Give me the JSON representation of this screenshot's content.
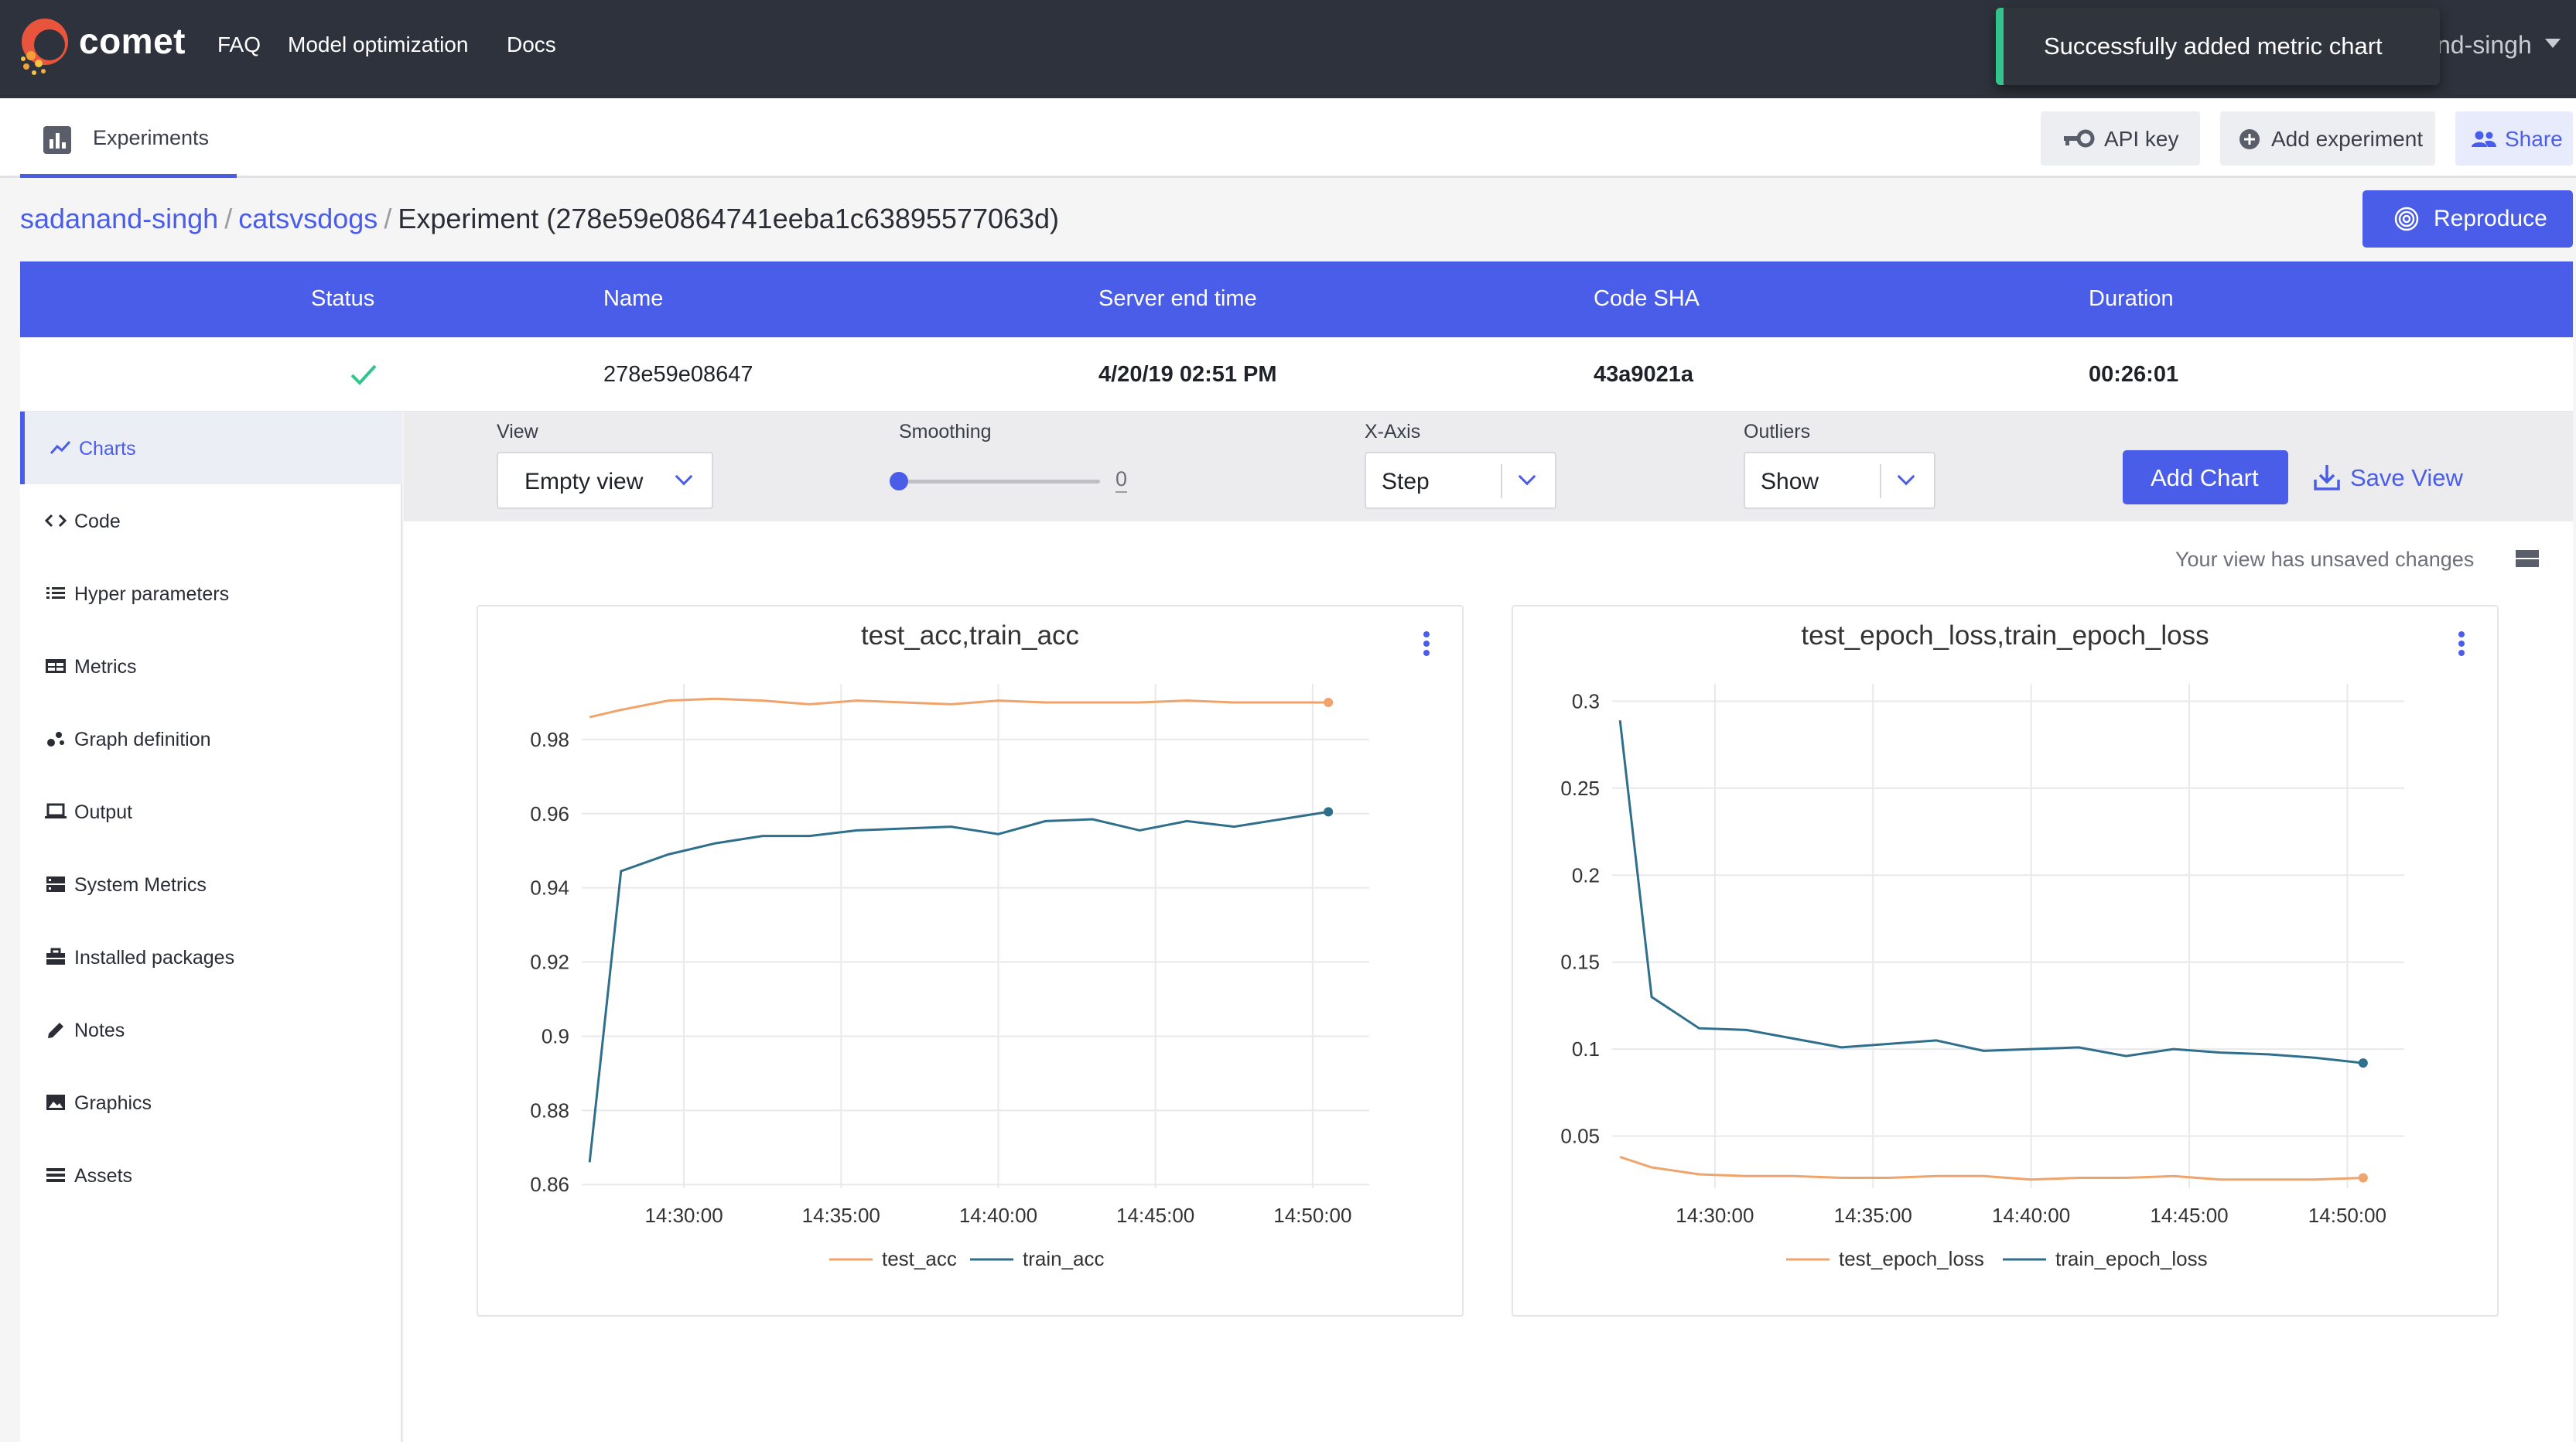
{
  "app": {
    "brand": "comet"
  },
  "topnav": [
    "FAQ",
    "Model optimization",
    "Docs"
  ],
  "user_truncated": "nd-singh",
  "toast": {
    "message": "Successfully added metric chart"
  },
  "subheader": {
    "tab_label": "Experiments",
    "api_key_label": "API key",
    "add_experiment_label": "Add experiment",
    "share_label": "Share"
  },
  "breadcrumb": {
    "workspace": "sadanand-singh",
    "project": "catsvsdogs",
    "separator": "/",
    "current": "Experiment (278e59e0864741eeba1c63895577063d)"
  },
  "reproduce_label": "Reproduce",
  "info_table": {
    "headers": [
      "Status",
      "Name",
      "Server end time",
      "Code SHA",
      "Duration"
    ],
    "row": {
      "status": "success",
      "name": "278e59e08647",
      "server_end_time": "4/20/19 02:51 PM",
      "code_sha": "43a9021a",
      "duration": "00:26:01"
    }
  },
  "sidebar": {
    "items": [
      {
        "label": "Charts",
        "icon": "line-chart-icon",
        "active": true
      },
      {
        "label": "Code",
        "icon": "code-icon"
      },
      {
        "label": "Hyper parameters",
        "icon": "list-icon"
      },
      {
        "label": "Metrics",
        "icon": "table-icon"
      },
      {
        "label": "Graph definition",
        "icon": "graph-icon"
      },
      {
        "label": "Output",
        "icon": "laptop-icon"
      },
      {
        "label": "System Metrics",
        "icon": "server-icon"
      },
      {
        "label": "Installed packages",
        "icon": "briefcase-icon"
      },
      {
        "label": "Notes",
        "icon": "pencil-icon"
      },
      {
        "label": "Graphics",
        "icon": "image-icon"
      },
      {
        "label": "Assets",
        "icon": "assets-list-icon"
      }
    ]
  },
  "controls": {
    "view_label": "View",
    "view_value": "Empty view",
    "smoothing_label": "Smoothing",
    "smoothing_value": "0",
    "xaxis_label": "X-Axis",
    "xaxis_value": "Step",
    "outliers_label": "Outliers",
    "outliers_value": "Show",
    "add_chart_label": "Add Chart",
    "save_view_label": "Save View"
  },
  "unsaved_text": "Your view has unsaved changes",
  "colors": {
    "accent": "#4a5de8",
    "topbar": "#2e323c",
    "success": "#33c48d",
    "series_orange": "#f0a46c",
    "series_blue": "#2f6f8c"
  },
  "chart_data": [
    {
      "type": "line",
      "title": "test_acc,train_acc",
      "xlabel": "",
      "ylabel": "",
      "x": [
        "14:27:00",
        "14:28:00",
        "14:29:30",
        "14:31:00",
        "14:32:30",
        "14:34:00",
        "14:35:30",
        "14:37:00",
        "14:38:30",
        "14:40:00",
        "14:41:30",
        "14:43:00",
        "14:44:30",
        "14:46:00",
        "14:47:30",
        "14:49:00",
        "14:50:30"
      ],
      "xticks": [
        "14:30:00",
        "14:35:00",
        "14:40:00",
        "14:45:00",
        "14:50:00"
      ],
      "yticks": [
        "0.86",
        "0.88",
        "0.9",
        "0.92",
        "0.94",
        "0.96",
        "0.98"
      ],
      "ylim": [
        0.859,
        0.995
      ],
      "grid": true,
      "legend_position": "bottom",
      "series": [
        {
          "name": "test_acc",
          "color": "#f0a46c",
          "values": [
            0.986,
            0.988,
            0.9905,
            0.991,
            0.9905,
            0.9895,
            0.9905,
            0.99,
            0.9895,
            0.9905,
            0.99,
            0.99,
            0.99,
            0.9905,
            0.99,
            0.99,
            0.99
          ]
        },
        {
          "name": "train_acc",
          "color": "#2f6f8c",
          "values": [
            0.866,
            0.9445,
            0.949,
            0.952,
            0.954,
            0.954,
            0.9555,
            0.956,
            0.9565,
            0.9545,
            0.958,
            0.9585,
            0.9555,
            0.958,
            0.9565,
            0.9585,
            0.9605
          ]
        }
      ]
    },
    {
      "type": "line",
      "title": "test_epoch_loss,train_epoch_loss",
      "xlabel": "",
      "ylabel": "",
      "x": [
        "14:27:00",
        "14:28:00",
        "14:29:30",
        "14:31:00",
        "14:32:30",
        "14:34:00",
        "14:35:30",
        "14:37:00",
        "14:38:30",
        "14:40:00",
        "14:41:30",
        "14:43:00",
        "14:44:30",
        "14:46:00",
        "14:47:30",
        "14:49:00",
        "14:50:30"
      ],
      "xticks": [
        "14:30:00",
        "14:35:00",
        "14:40:00",
        "14:45:00",
        "14:50:00"
      ],
      "yticks": [
        "0.05",
        "0.1",
        "0.15",
        "0.2",
        "0.25",
        "0.3"
      ],
      "ylim": [
        0.02,
        0.31
      ],
      "grid": true,
      "legend_position": "bottom",
      "series": [
        {
          "name": "test_epoch_loss",
          "color": "#f0a46c",
          "values": [
            0.038,
            0.032,
            0.028,
            0.027,
            0.027,
            0.026,
            0.026,
            0.027,
            0.027,
            0.025,
            0.026,
            0.026,
            0.027,
            0.025,
            0.025,
            0.025,
            0.026
          ]
        },
        {
          "name": "train_epoch_loss",
          "color": "#2f6f8c",
          "values": [
            0.289,
            0.13,
            0.112,
            0.111,
            0.106,
            0.101,
            0.103,
            0.105,
            0.099,
            0.1,
            0.101,
            0.096,
            0.1,
            0.098,
            0.097,
            0.095,
            0.092
          ]
        }
      ]
    }
  ]
}
